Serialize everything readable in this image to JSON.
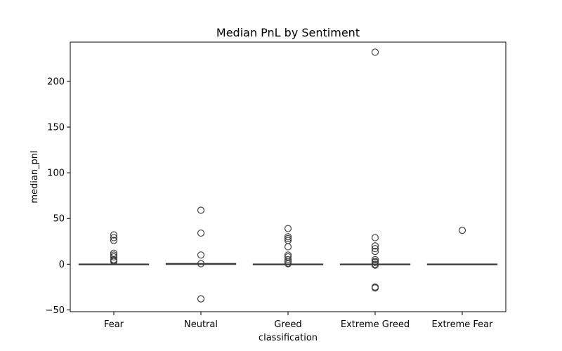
{
  "chart_data": {
    "type": "box",
    "title": "Median PnL by Sentiment",
    "xlabel": "classification",
    "ylabel": "median_pnl",
    "categories": [
      "Fear",
      "Neutral",
      "Greed",
      "Extreme Greed",
      "Extreme Fear"
    ],
    "ylim": [
      -52,
      243
    ],
    "yticks": [
      -50,
      0,
      50,
      100,
      150,
      200
    ],
    "grid": false,
    "boxes": [
      {
        "category": "Fear",
        "q1": -0.2,
        "median": 0,
        "q3": 0.2,
        "whisker_low": -0.5,
        "whisker_high": 0.5,
        "outliers": [
          32,
          29,
          26,
          12,
          10,
          8,
          5,
          4,
          3
        ]
      },
      {
        "category": "Neutral",
        "q1": -0.3,
        "median": 0.3,
        "q3": 0.8,
        "whisker_low": -0.5,
        "whisker_high": 1,
        "outliers": [
          59,
          34,
          10,
          0.5,
          -38
        ]
      },
      {
        "category": "Greed",
        "q1": -0.2,
        "median": 0,
        "q3": 0.2,
        "whisker_low": -0.5,
        "whisker_high": 0.5,
        "outliers": [
          39,
          30,
          28,
          26,
          19,
          10,
          8,
          5,
          3,
          1,
          0.5
        ]
      },
      {
        "category": "Extreme Greed",
        "q1": -0.2,
        "median": 0,
        "q3": 0.2,
        "whisker_low": -0.5,
        "whisker_high": 0.5,
        "outliers": [
          232,
          29,
          20,
          17,
          14,
          5,
          3,
          2,
          0,
          -1,
          -25,
          -26
        ]
      },
      {
        "category": "Extreme Fear",
        "q1": -0.2,
        "median": 0,
        "q3": 0.2,
        "whisker_low": -0.5,
        "whisker_high": 0.5,
        "outliers": [
          37
        ]
      }
    ],
    "colors": {
      "box_fill": "#3274a1",
      "line": "#3f3f3f",
      "axis": "#000000"
    }
  }
}
